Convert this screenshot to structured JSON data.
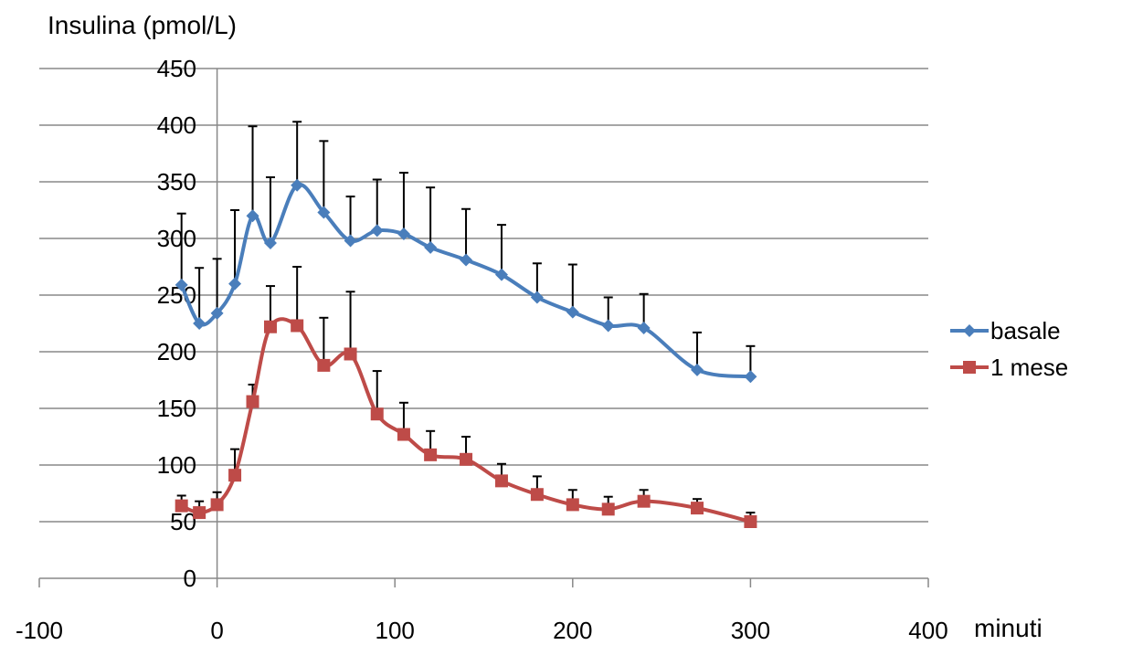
{
  "chart_data": {
    "type": "line",
    "ylabel": "Insulina (pmol/L)",
    "xlabel": "minuti",
    "xlim": [
      -100,
      400
    ],
    "ylim": [
      0,
      450
    ],
    "xticks": [
      -100,
      0,
      100,
      200,
      300,
      400
    ],
    "yticks": [
      0,
      50,
      100,
      150,
      200,
      250,
      300,
      350,
      400,
      450
    ],
    "grid": "horizontal",
    "legend_position": "right",
    "series": [
      {
        "name": "basale",
        "color": "#4a7ebb",
        "marker": "diamond",
        "x": [
          -20,
          -10,
          0,
          10,
          20,
          30,
          45,
          60,
          75,
          90,
          105,
          120,
          140,
          160,
          180,
          200,
          220,
          240,
          270,
          300
        ],
        "y": [
          259,
          225,
          234,
          260,
          320,
          296,
          347,
          323,
          298,
          307,
          304,
          292,
          281,
          268,
          248,
          235,
          223,
          221,
          184,
          178
        ],
        "err": [
          63,
          49,
          48,
          65,
          79,
          58,
          56,
          63,
          39,
          45,
          54,
          53,
          45,
          44,
          30,
          42,
          25,
          30,
          33,
          27
        ]
      },
      {
        "name": "1 mese",
        "color": "#be4b48",
        "marker": "square",
        "x": [
          -20,
          -10,
          0,
          10,
          20,
          30,
          45,
          60,
          75,
          90,
          105,
          120,
          140,
          160,
          180,
          200,
          220,
          240,
          270,
          300
        ],
        "y": [
          64,
          58,
          65,
          91,
          156,
          222,
          223,
          188,
          198,
          145,
          127,
          109,
          105,
          86,
          74,
          65,
          61,
          68,
          62,
          50
        ],
        "err": [
          9,
          10,
          11,
          23,
          15,
          36,
          52,
          42,
          55,
          38,
          28,
          21,
          20,
          15,
          16,
          13,
          11,
          10,
          8,
          8
        ]
      }
    ]
  }
}
